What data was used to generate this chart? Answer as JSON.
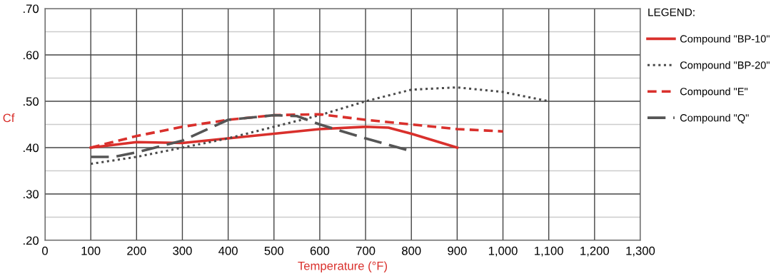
{
  "chart_data": {
    "type": "line",
    "xlabel": "Temperature (°F)",
    "ylabel": "Cf",
    "legend_title": "LEGEND:",
    "legend": "right",
    "grid": true,
    "xlim": [
      0,
      1300
    ],
    "xticks": [
      0,
      100,
      200,
      300,
      400,
      500,
      600,
      700,
      800,
      900,
      {
        "value": 1000,
        "label": "1,000"
      },
      {
        "value": 1100,
        "label": "1,100"
      },
      {
        "value": 1200,
        "label": "1,200"
      },
      {
        "value": 1300,
        "label": "1,300"
      }
    ],
    "ylim": [
      0.2,
      0.7
    ],
    "yticks": [
      {
        "value": 0.2,
        "label": ".20"
      },
      {
        "value": 0.25,
        "label": null
      },
      {
        "value": 0.3,
        "label": ".30"
      },
      {
        "value": 0.35,
        "label": null
      },
      {
        "value": 0.4,
        "label": ".40"
      },
      {
        "value": 0.45,
        "label": null
      },
      {
        "value": 0.5,
        "label": ".50"
      },
      {
        "value": 0.55,
        "label": null
      },
      {
        "value": 0.6,
        "label": ".60"
      },
      {
        "value": 0.65,
        "label": null
      },
      {
        "value": 0.7,
        "label": ".70"
      }
    ],
    "series": [
      {
        "name": "Compound \"BP-10\"",
        "color": "#d9302c",
        "line_style": "solid",
        "x": [
          100,
          200,
          300,
          400,
          500,
          600,
          700,
          750,
          800,
          900
        ],
        "values": [
          0.4,
          0.412,
          0.41,
          0.42,
          0.43,
          0.44,
          0.445,
          0.443,
          0.43,
          0.4
        ]
      },
      {
        "name": "Compound \"BP-20\"",
        "color": "#4a4a4a",
        "line_style": "dotted",
        "x": [
          100,
          200,
          300,
          400,
          500,
          600,
          700,
          800,
          900,
          1000,
          1100
        ],
        "values": [
          0.365,
          0.38,
          0.4,
          0.42,
          0.445,
          0.47,
          0.5,
          0.525,
          0.53,
          0.52,
          0.5
        ]
      },
      {
        "name": "Compound \"E\"",
        "color": "#d9302c",
        "line_style": "dashed",
        "x": [
          100,
          200,
          300,
          400,
          500,
          600,
          700,
          800,
          900,
          1000
        ],
        "values": [
          0.4,
          0.425,
          0.445,
          0.46,
          0.47,
          0.472,
          0.46,
          0.45,
          0.44,
          0.435
        ]
      },
      {
        "name": "Compound \"Q\"",
        "color": "#555555",
        "line_style": "longdash",
        "x": [
          100,
          150,
          200,
          300,
          400,
          500,
          550,
          600,
          700,
          790
        ],
        "values": [
          0.38,
          0.38,
          0.39,
          0.415,
          0.46,
          0.47,
          0.468,
          0.45,
          0.42,
          0.395
        ]
      }
    ]
  }
}
